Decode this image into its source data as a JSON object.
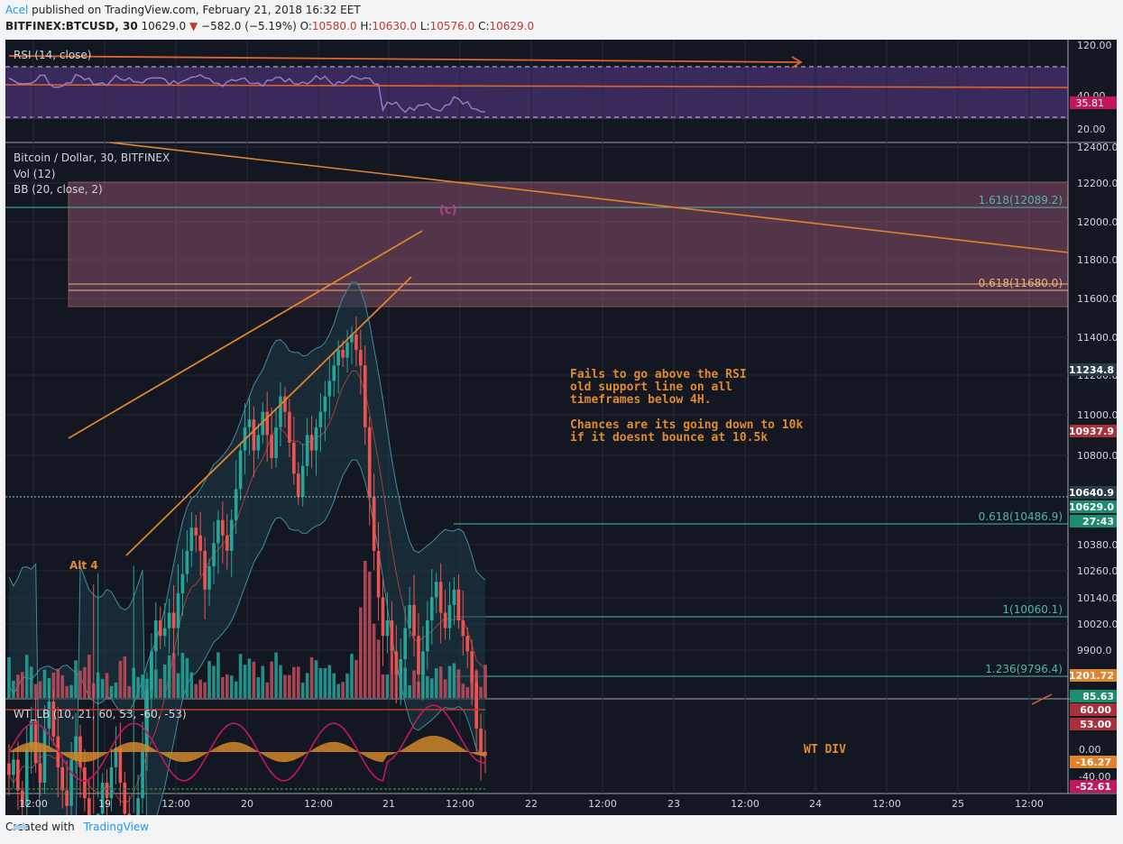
{
  "header": {
    "author": "Acel",
    "published": " published on TradingView.com, February 21, 2018 16:32 EET",
    "symbol": "BITFINEX:BTCUSD, 30",
    "last": "10629.0",
    "change": "−582.0 (−5.19%)",
    "open_label": "O:",
    "open": "10580.0",
    "high_label": "H:",
    "high": "10630.0",
    "low_label": "L:",
    "low": "10576.0",
    "close_label": "C:",
    "close": "10629.0"
  },
  "footer": {
    "created": "Created with",
    "brand": "TradingView"
  },
  "colors": {
    "bg": "#131722",
    "up": "#26a69a",
    "down": "#ef5350",
    "annotation": "#e08a2b",
    "fib": "#4db6ac",
    "rsi": "#9c7cc9"
  },
  "chart_data": [
    {
      "type": "line",
      "panel": "rsi",
      "title": "RSI (14, close)",
      "y_ticks": [
        "120.00",
        "40.00",
        "20.00"
      ],
      "last_label": "35.81",
      "bands": [
        70,
        30
      ]
    },
    {
      "type": "candlestick",
      "panel": "price",
      "title": "Bitcoin / Dollar, 30, BITFINEX",
      "indicators": [
        "Vol (12)",
        "BB (20, close, 2)"
      ],
      "x_ticks": [
        "12:00",
        "19",
        "12:00",
        "20",
        "12:00",
        "21",
        "12:00",
        "22",
        "12:00",
        "23",
        "12:00",
        "24",
        "12:00",
        "25",
        "12:00"
      ],
      "y_ticks": [
        "12400.0",
        "12200.0",
        "12000.0",
        "11800.0",
        "11600.0",
        "11400.0",
        "11200.0",
        "11000.0",
        "10800.0",
        "10380.0",
        "10260.0",
        "10140.0",
        "10020.0",
        "9900.0"
      ],
      "price_labels": [
        {
          "text": "11234.8",
          "kind": "bb"
        },
        {
          "text": "10937.9",
          "kind": "down"
        },
        {
          "text": "10640.9",
          "kind": "bb"
        },
        {
          "text": "10629.0",
          "kind": "up"
        },
        {
          "text": "27:43",
          "kind": "up"
        },
        {
          "text": "1201.72",
          "kind": "vol"
        },
        {
          "text": "85.63",
          "kind": "up"
        }
      ],
      "fib_levels": [
        {
          "label": "1.618(12089.2)",
          "value": 12089.2
        },
        {
          "label": "0.618(11680.0)",
          "value": 11680.0
        },
        {
          "label": "0.618(10486.9)",
          "value": 10486.9
        },
        {
          "label": "1(10060.1)",
          "value": 10060.1
        },
        {
          "label": "1.236(9796.4)",
          "value": 9796.4
        }
      ],
      "annotations": {
        "wave_c": "(c)",
        "alt4": "Alt 4",
        "note_lines": [
          "Fails to go above the RSI",
          "old support line on all",
          "timeframes below 4H.",
          "",
          "Chances are its going down to 10k",
          "if it doesnt bounce at 10.5k"
        ]
      },
      "close_path": [
        10580,
        10620,
        10540,
        10500,
        10650,
        10720,
        10610,
        10560,
        10700,
        10770,
        10680,
        10600,
        10540,
        10500,
        10620,
        10680,
        10600,
        10520,
        10450,
        10400,
        10480,
        10560,
        10520,
        10600,
        10650,
        10560,
        10480,
        10420,
        10460,
        10520,
        10640,
        10800,
        10900,
        10980,
        10940,
        10960,
        11000,
        10960,
        11050,
        11100,
        11160,
        11220,
        11200,
        11160,
        11060,
        11120,
        11180,
        11240,
        11200,
        11160,
        11240,
        11320,
        11420,
        11480,
        11500,
        11420,
        11460,
        11520,
        11460,
        11400,
        11480,
        11560,
        11520,
        11440,
        11360,
        11300,
        11380,
        11460,
        11420,
        11480,
        11520,
        11560,
        11600,
        11640,
        11680,
        11660,
        11700,
        11720,
        11680,
        11640,
        11480,
        11300,
        11160,
        11040,
        10940,
        10980,
        10900,
        10840,
        10880,
        10960,
        11020,
        10940,
        10840,
        10900,
        10980,
        11040,
        11080,
        11000,
        10960,
        11020,
        11060,
        10980,
        10940,
        10900,
        10820,
        10700,
        10640,
        10629
      ]
    },
    {
      "type": "line",
      "panel": "wt_lb",
      "title": "WT_LB (10, 21, 60, 53, -60, -53)",
      "y_ticks": [
        "0.00",
        "-40.00"
      ],
      "value_labels": [
        "60.00",
        "53.00",
        "-16.27",
        "-52.61"
      ],
      "annotation": "WT DIV"
    }
  ]
}
